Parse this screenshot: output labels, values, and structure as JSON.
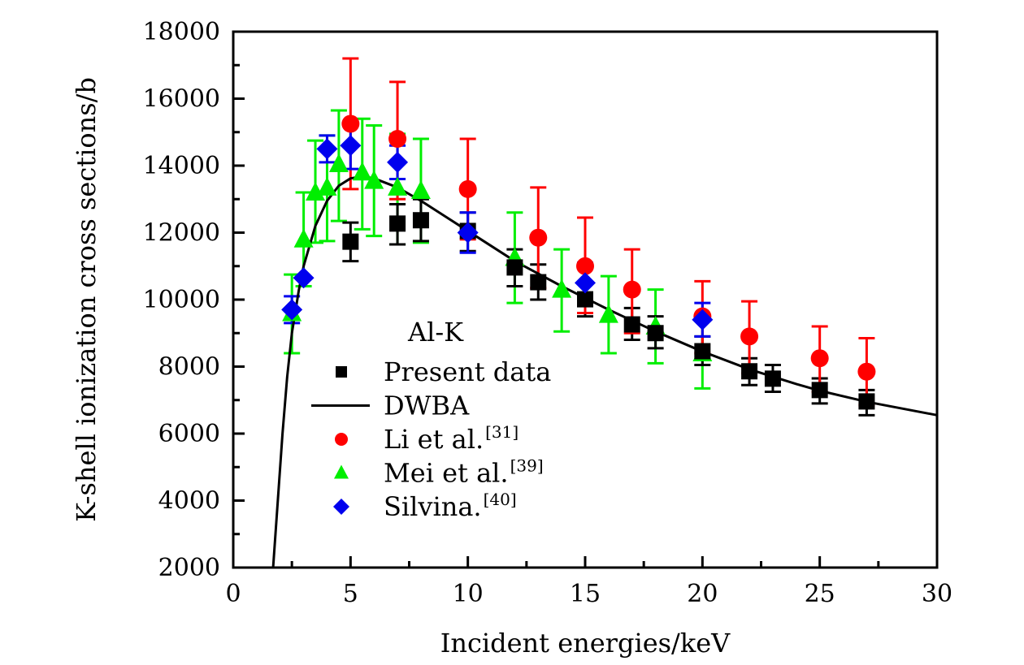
{
  "chart_data": {
    "type": "scatter",
    "title": "",
    "annotation": "Al-K",
    "xlabel": "Incident energies/keV",
    "ylabel": "K-shell ionization cross sections/b",
    "xlim": [
      0,
      30
    ],
    "ylim": [
      2000,
      18000
    ],
    "x_ticks": [
      0,
      5,
      10,
      15,
      20,
      25,
      30
    ],
    "x_tick_labels": [
      "0",
      "5",
      "10",
      "15",
      "20",
      "25",
      "30"
    ],
    "y_ticks": [
      2000,
      4000,
      6000,
      8000,
      10000,
      12000,
      14000,
      16000,
      18000
    ],
    "y_tick_labels": [
      "2000",
      "4000",
      "6000",
      "8000",
      "10000",
      "12000",
      "14000",
      "16000",
      "18000"
    ],
    "grid": false,
    "legend_placement": "center-left",
    "series": [
      {
        "name": "Present data",
        "marker": "square",
        "color": "#000000",
        "points": [
          {
            "x": 5,
            "y": 11730,
            "lo": 11150,
            "hi": 12300
          },
          {
            "x": 7,
            "y": 12270,
            "lo": 11650,
            "hi": 12850
          },
          {
            "x": 8,
            "y": 12370,
            "lo": 11750,
            "hi": 13000
          },
          {
            "x": 10,
            "y": 12050,
            "lo": 11450,
            "hi": 12600
          },
          {
            "x": 12,
            "y": 10960,
            "lo": 10400,
            "hi": 11500
          },
          {
            "x": 13,
            "y": 10520,
            "lo": 10000,
            "hi": 11050
          },
          {
            "x": 15,
            "y": 10010,
            "lo": 9500,
            "hi": 10500
          },
          {
            "x": 17,
            "y": 9260,
            "lo": 8800,
            "hi": 9750
          },
          {
            "x": 18,
            "y": 9000,
            "lo": 8550,
            "hi": 9500
          },
          {
            "x": 20,
            "y": 8460,
            "lo": 8050,
            "hi": 8900
          },
          {
            "x": 22,
            "y": 7860,
            "lo": 7450,
            "hi": 8250
          },
          {
            "x": 23,
            "y": 7640,
            "lo": 7250,
            "hi": 8050
          },
          {
            "x": 25,
            "y": 7300,
            "lo": 6900,
            "hi": 7650
          },
          {
            "x": 27,
            "y": 6960,
            "lo": 6550,
            "hi": 7300
          }
        ]
      },
      {
        "name": "DWBA",
        "marker": "line",
        "color": "#000000",
        "points": [
          {
            "x": 1.7,
            "y": 2000
          },
          {
            "x": 1.9,
            "y": 4000
          },
          {
            "x": 2.1,
            "y": 6000
          },
          {
            "x": 2.3,
            "y": 7700
          },
          {
            "x": 2.5,
            "y": 9000
          },
          {
            "x": 2.8,
            "y": 10300
          },
          {
            "x": 3.0,
            "y": 11000
          },
          {
            "x": 3.5,
            "y": 12200
          },
          {
            "x": 4.0,
            "y": 12950
          },
          {
            "x": 4.5,
            "y": 13400
          },
          {
            "x": 5.0,
            "y": 13620
          },
          {
            "x": 5.5,
            "y": 13680
          },
          {
            "x": 6.0,
            "y": 13620
          },
          {
            "x": 7.0,
            "y": 13350
          },
          {
            "x": 8.0,
            "y": 12950
          },
          {
            "x": 9.0,
            "y": 12500
          },
          {
            "x": 10.0,
            "y": 12050
          },
          {
            "x": 12.0,
            "y": 11150
          },
          {
            "x": 14.0,
            "y": 10400
          },
          {
            "x": 15.0,
            "y": 10050
          },
          {
            "x": 16.0,
            "y": 9700
          },
          {
            "x": 18.0,
            "y": 9050
          },
          {
            "x": 20.0,
            "y": 8450
          },
          {
            "x": 22.0,
            "y": 7920
          },
          {
            "x": 24.0,
            "y": 7480
          },
          {
            "x": 25.0,
            "y": 7280
          },
          {
            "x": 27.0,
            "y": 6950
          },
          {
            "x": 30.0,
            "y": 6550
          }
        ]
      },
      {
        "name": "Li et al.",
        "ref": "[31]",
        "marker": "circle",
        "color": "#ff0000",
        "points": [
          {
            "x": 5,
            "y": 15250,
            "lo": 13300,
            "hi": 17200
          },
          {
            "x": 7,
            "y": 14800,
            "lo": 13000,
            "hi": 16500
          },
          {
            "x": 10,
            "y": 13300,
            "lo": 11800,
            "hi": 14800
          },
          {
            "x": 13,
            "y": 11850,
            "lo": 10350,
            "hi": 13350
          },
          {
            "x": 15,
            "y": 11000,
            "lo": 9600,
            "hi": 12450
          },
          {
            "x": 17,
            "y": 10300,
            "lo": 9000,
            "hi": 11500
          },
          {
            "x": 20,
            "y": 9500,
            "lo": 8400,
            "hi": 10550
          },
          {
            "x": 22,
            "y": 8900,
            "lo": 7800,
            "hi": 9950
          },
          {
            "x": 25,
            "y": 8250,
            "lo": 7250,
            "hi": 9200
          },
          {
            "x": 27,
            "y": 7850,
            "lo": 6850,
            "hi": 8850
          }
        ]
      },
      {
        "name": "Mei et al.",
        "ref": "[39]",
        "marker": "triangle",
        "color": "#00ee00",
        "points": [
          {
            "x": 2.5,
            "y": 9600,
            "lo": 8400,
            "hi": 10750
          },
          {
            "x": 3,
            "y": 11800,
            "lo": 10400,
            "hi": 13200
          },
          {
            "x": 3.5,
            "y": 13200,
            "lo": 11700,
            "hi": 14750
          },
          {
            "x": 4,
            "y": 13350,
            "lo": 11750,
            "hi": 14900
          },
          {
            "x": 4.5,
            "y": 14050,
            "lo": 12350,
            "hi": 15650
          },
          {
            "x": 5.5,
            "y": 13800,
            "lo": 12100,
            "hi": 15400
          },
          {
            "x": 6,
            "y": 13550,
            "lo": 11900,
            "hi": 15200
          },
          {
            "x": 7,
            "y": 13350,
            "lo": 11650,
            "hi": 14950
          },
          {
            "x": 8,
            "y": 13250,
            "lo": 11700,
            "hi": 14800
          },
          {
            "x": 12,
            "y": 11250,
            "lo": 9900,
            "hi": 12600
          },
          {
            "x": 14,
            "y": 10300,
            "lo": 9050,
            "hi": 11500
          },
          {
            "x": 16,
            "y": 9550,
            "lo": 8400,
            "hi": 10700
          },
          {
            "x": 18,
            "y": 9200,
            "lo": 8100,
            "hi": 10300
          },
          {
            "x": 20,
            "y": 8400,
            "lo": 7350,
            "hi": 9450
          }
        ]
      },
      {
        "name": "Silvina.",
        "ref": "[40]",
        "marker": "diamond",
        "color": "#0000ee",
        "points": [
          {
            "x": 2.5,
            "y": 9700,
            "lo": 9300,
            "hi": 10100
          },
          {
            "x": 3,
            "y": 10650,
            "lo": 10650,
            "hi": 10650
          },
          {
            "x": 4,
            "y": 14500,
            "lo": 14100,
            "hi": 14900
          },
          {
            "x": 5,
            "y": 14600,
            "lo": 13900,
            "hi": 15300
          },
          {
            "x": 7,
            "y": 14100,
            "lo": 13600,
            "hi": 14600
          },
          {
            "x": 10,
            "y": 12000,
            "lo": 11400,
            "hi": 12600
          },
          {
            "x": 15,
            "y": 10500,
            "lo": 9900,
            "hi": 11100
          },
          {
            "x": 20,
            "y": 9400,
            "lo": 8900,
            "hi": 9900
          }
        ]
      }
    ]
  }
}
